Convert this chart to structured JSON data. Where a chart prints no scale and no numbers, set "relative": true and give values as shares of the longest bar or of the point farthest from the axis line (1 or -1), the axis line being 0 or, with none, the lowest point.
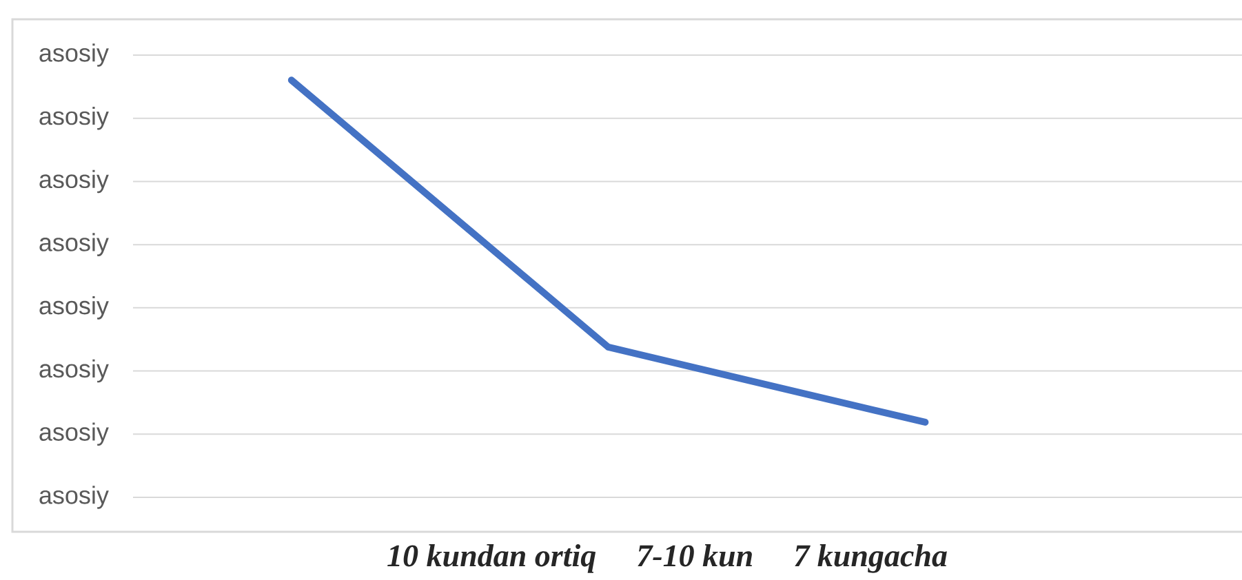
{
  "chart_data": {
    "type": "line",
    "relative": true,
    "categories": [
      null,
      null,
      null
    ],
    "y_categories": [
      "asosiy",
      "asosiy",
      "asosiy",
      "asosiy",
      "asosiy",
      "asosiy",
      "asosiy",
      "asosiy"
    ],
    "series": [
      {
        "color": "#4472c4",
        "values": [
          1,
          0.36,
          0.18
        ]
      }
    ],
    "tick_labels": "y",
    "grid": "y",
    "marker": "none",
    "line_style": "solid",
    "legend": false,
    "annotations": [
      "10 kundan ortiq",
      "7-10 kun",
      "7 kungacha"
    ]
  }
}
